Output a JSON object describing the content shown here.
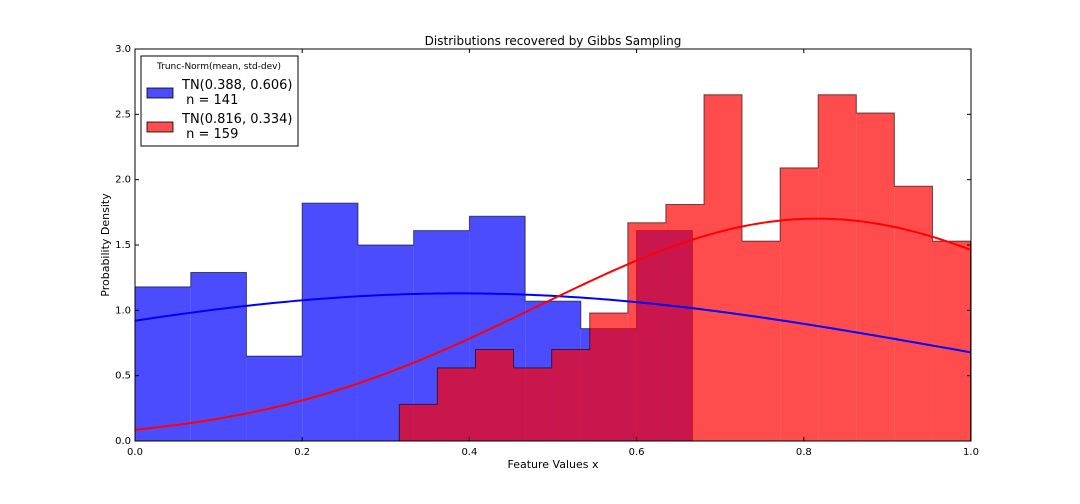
{
  "chart_data": {
    "type": "bar",
    "title": "Distributions recovered by Gibbs Sampling",
    "xlabel": "Feature Values x",
    "ylabel": "Probability Density",
    "xlim": [
      0,
      1
    ],
    "ylim": [
      0,
      3
    ],
    "xticks": [
      "0.0",
      "0.2",
      "0.4",
      "0.6",
      "0.8",
      "1.0"
    ],
    "yticks": [
      "0.0",
      "0.5",
      "1.0",
      "1.5",
      "2.0",
      "2.5",
      "3.0"
    ],
    "legend": {
      "title": "Trunc-Norm(mean, std-dev)",
      "placement": "top-left",
      "entries": [
        {
          "label_line1": "TN(0.388, 0.606)",
          "label_line2": " n = 141",
          "color": "#0000ff"
        },
        {
          "label_line1": "TN(0.816, 0.334)",
          "label_line2": " n = 159",
          "color": "#ff0000"
        }
      ]
    },
    "series": [
      {
        "name": "TN(0.388, 0.606) n = 141",
        "kind": "histogram",
        "color": "#0000ff",
        "alpha": 0.7,
        "edges": [
          0.0,
          0.0667,
          0.1333,
          0.2,
          0.2667,
          0.3333,
          0.4,
          0.4667,
          0.5333,
          0.6,
          0.6667
        ],
        "values": [
          1.18,
          1.29,
          0.65,
          1.82,
          1.5,
          1.61,
          1.72,
          1.07,
          0.86,
          1.61
        ]
      },
      {
        "name": "TN(0.816, 0.334) n = 159",
        "kind": "histogram",
        "color": "#ff0000",
        "alpha": 0.7,
        "edges": [
          0.3162,
          0.3617,
          0.4073,
          0.4528,
          0.4984,
          0.5439,
          0.5895,
          0.635,
          0.6806,
          0.7261,
          0.7717,
          0.8172,
          0.8628,
          0.9083,
          0.9539,
          0.9994
        ],
        "values": [
          0.28,
          0.56,
          0.7,
          0.56,
          0.7,
          0.98,
          1.67,
          1.81,
          2.65,
          1.53,
          2.09,
          2.65,
          2.51,
          1.95,
          1.53
        ]
      },
      {
        "name": "TN(0.388, 0.606)",
        "kind": "curve",
        "color": "#0000ff",
        "mean": 0.388,
        "sd": 0.606
      },
      {
        "name": "TN(0.816, 0.334)",
        "kind": "curve",
        "color": "#ff0000",
        "mean": 0.816,
        "sd": 0.334
      }
    ]
  }
}
